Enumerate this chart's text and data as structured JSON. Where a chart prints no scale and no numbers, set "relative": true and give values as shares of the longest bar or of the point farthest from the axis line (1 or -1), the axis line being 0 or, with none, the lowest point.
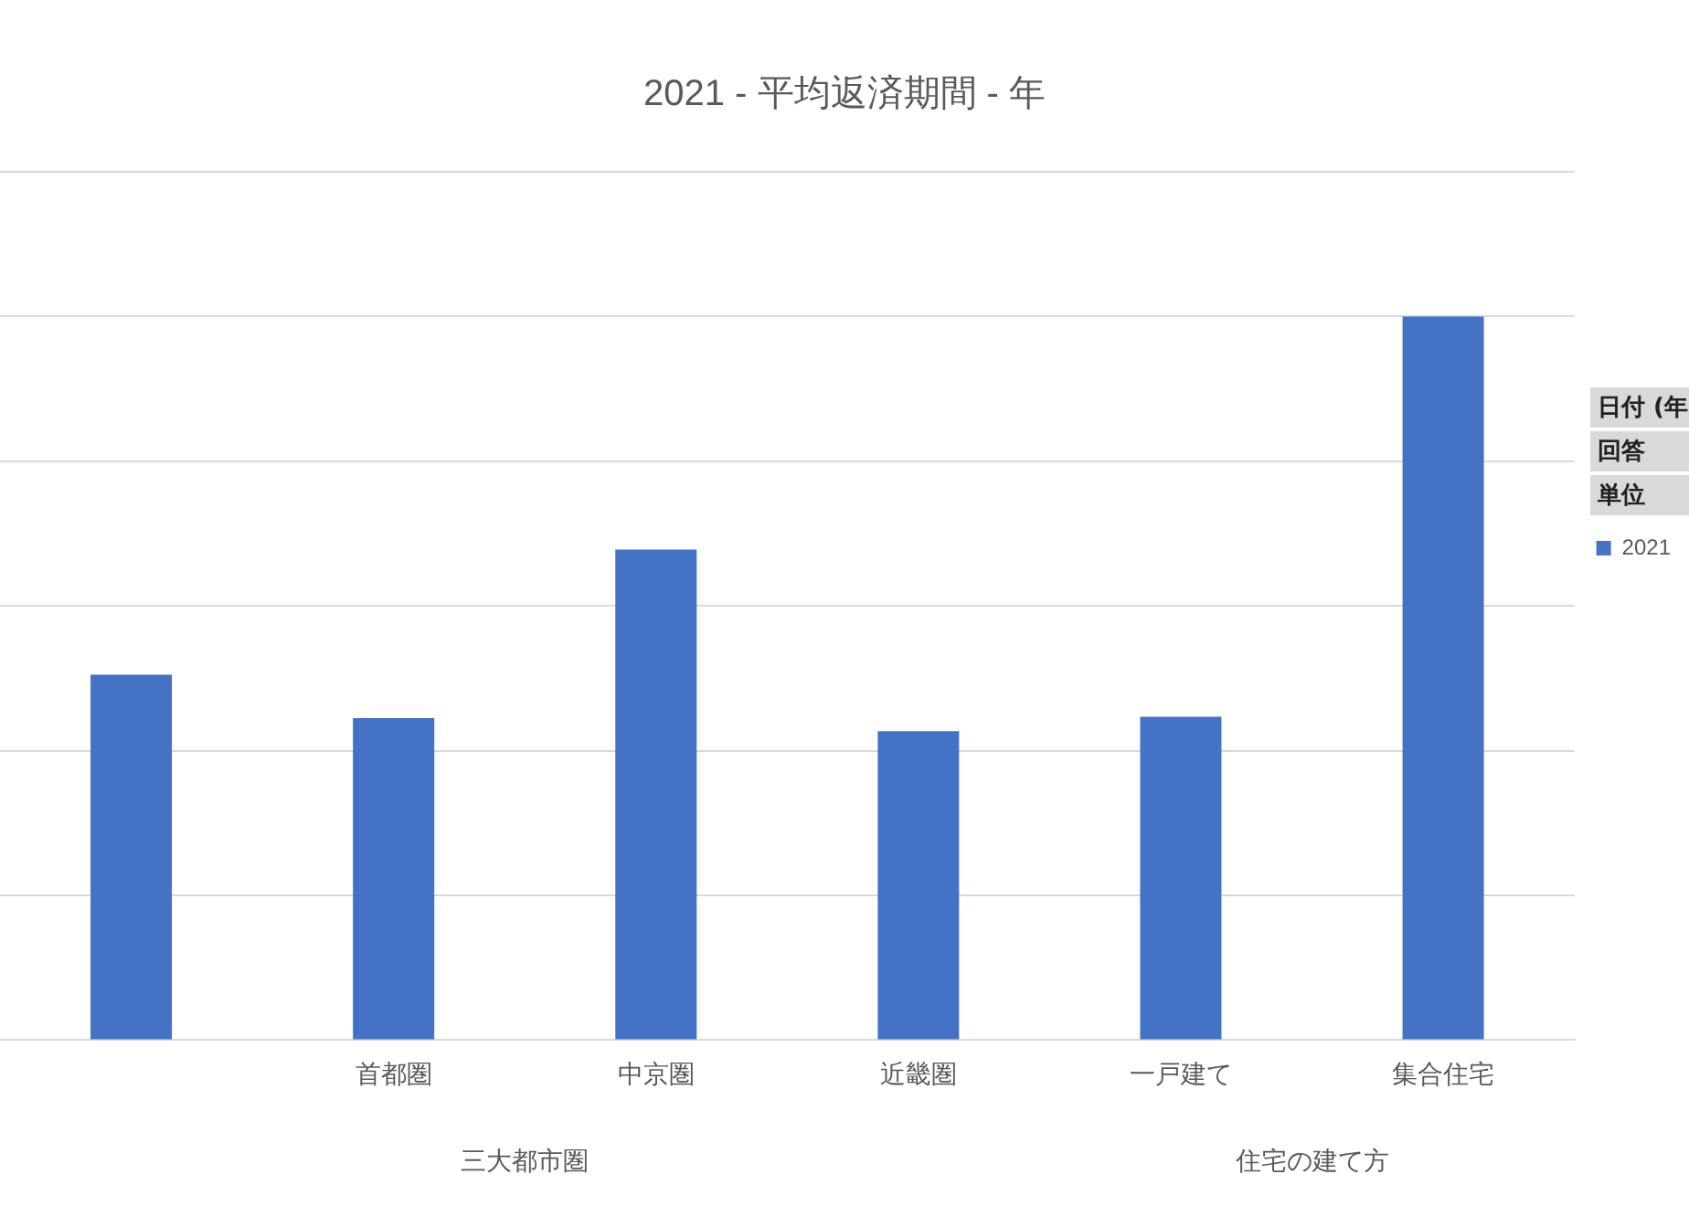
{
  "chart_data": {
    "type": "bar",
    "title": "2021 - 平均返済期間 - 年",
    "relative": true,
    "grid": "y",
    "legend": "right",
    "categories": [
      null,
      "首都圏",
      "中京圏",
      "近畿圏",
      "一戸建て",
      "集合住宅"
    ],
    "series": [
      {
        "name": "2021",
        "color": "#4472c4",
        "values": [
          0.505,
          0.445,
          0.678,
          0.427,
          0.447,
          1
        ]
      }
    ],
    "annotations": [
      "三大都市圏",
      "住宅の建て方",
      "日付 (年",
      "回答",
      "単位"
    ]
  }
}
